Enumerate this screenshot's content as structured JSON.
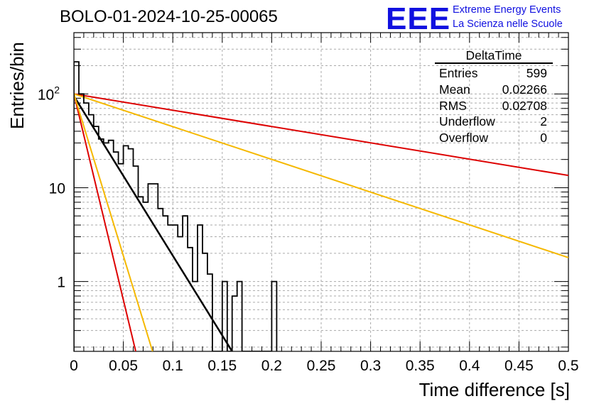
{
  "title": "BOLO-01-2024-10-25-00065",
  "logo": {
    "mark": "EEE",
    "line1": "Extreme Energy Events",
    "line2": "La Scienza nelle Scuole",
    "color": "#1010e0"
  },
  "stats_box": {
    "name": "DeltaTime",
    "rows": [
      {
        "label": "Entries",
        "value": "599"
      },
      {
        "label": "Mean",
        "value": "0.02266"
      },
      {
        "label": "RMS",
        "value": "0.02708"
      },
      {
        "label": "Underflow",
        "value": "2"
      },
      {
        "label": "Overflow",
        "value": "0"
      }
    ]
  },
  "chart_data": {
    "type": "line",
    "xlabel": "Time difference [s]",
    "ylabel": "Entries/bin",
    "xlim": [
      0,
      0.5
    ],
    "ylim": [
      0.18,
      450
    ],
    "y_scale": "log",
    "grid": true,
    "x_ticks": [
      "0",
      "0.05",
      "0.1",
      "0.15",
      "0.2",
      "0.25",
      "0.3",
      "0.35",
      "0.4",
      "0.45",
      "0.5"
    ],
    "y_ticks": [
      {
        "value": 1,
        "label": "1"
      },
      {
        "value": 10,
        "label": "10"
      },
      {
        "value": 100,
        "label": "10",
        "exp": "2"
      }
    ],
    "histogram": {
      "bin_width": 0.005,
      "color": "#000000",
      "counts": [
        220,
        100,
        80,
        60,
        45,
        33,
        30,
        32,
        24,
        18,
        28,
        26,
        17,
        8,
        7,
        11,
        11,
        6,
        5,
        4,
        4,
        3,
        5,
        2.3,
        1,
        4,
        2,
        1.2,
        0,
        0,
        1,
        0,
        0.7,
        1,
        0,
        0,
        0,
        0,
        0,
        0,
        1
      ]
    },
    "fits": [
      {
        "color": "#000000",
        "points": [
          [
            0,
            95
          ],
          [
            0.16,
            0.18
          ]
        ]
      },
      {
        "color": "#dd0000",
        "points": [
          [
            0,
            100
          ],
          [
            0.5,
            13.5
          ]
        ]
      },
      {
        "color": "#dd0000",
        "points": [
          [
            0,
            100
          ],
          [
            0.0625,
            0.18
          ]
        ]
      },
      {
        "color": "#f5b800",
        "points": [
          [
            0,
            100
          ],
          [
            0.5,
            1.8
          ]
        ]
      },
      {
        "color": "#f5b800",
        "points": [
          [
            0,
            100
          ],
          [
            0.0795,
            0.18
          ]
        ]
      }
    ]
  }
}
